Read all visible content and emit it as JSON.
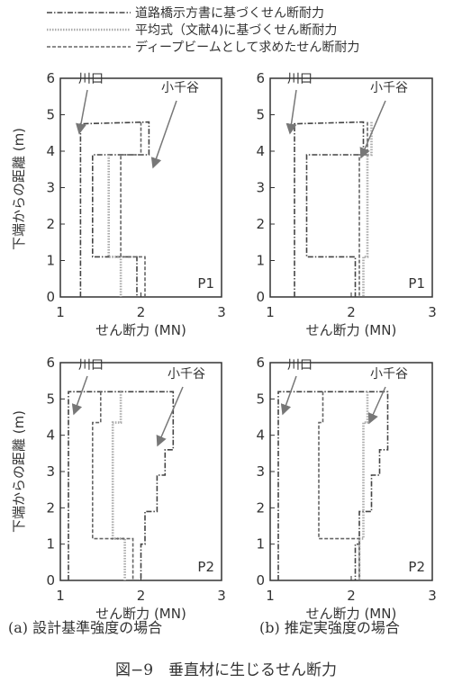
{
  "legend": [
    {
      "label": "道路橋示方書に基づくせん断耐力",
      "style": "dash-dot",
      "color": "#444444"
    },
    {
      "label": "平均式（文献4)に基づくせん断耐力",
      "style": "dotted",
      "color": "#aaaaaa"
    },
    {
      "label": "ディープビームとして求めたせん断耐力",
      "style": "dashed",
      "color": "#666666"
    }
  ],
  "ylabel": "下端からの距離 (m)",
  "xlabel": "せん断力 (MN)",
  "x_ticks": [
    "1",
    "2",
    "3"
  ],
  "y_ticks": [
    "0",
    "1",
    "2",
    "3",
    "4",
    "5",
    "6"
  ],
  "annotations": {
    "kawaguchi": "川口",
    "kochidani": "小千谷"
  },
  "subcaptions": {
    "a": "(a) 設計基準強度の場合",
    "b": "(b) 推定実強度の場合"
  },
  "figure_caption": "図−9　垂直材に生じるせん断力",
  "chart_data": [
    {
      "type": "line",
      "panel_label": "P1",
      "column": "a",
      "xlim": [
        1,
        3
      ],
      "ylim": [
        0,
        6
      ],
      "series": [
        {
          "name": "道路橋示方書に基づくせん断耐力",
          "color": "#444444",
          "dash": "6,2,1.5,2",
          "points": [
            [
              1.25,
              0
            ],
            [
              1.25,
              4.75
            ],
            [
              2.1,
              4.8
            ],
            [
              2.1,
              3.9
            ],
            [
              1.4,
              3.9
            ],
            [
              1.4,
              1.1
            ],
            [
              1.95,
              1.1
            ],
            [
              1.95,
              0
            ]
          ]
        },
        {
          "name": "平均式（文献4)に基づくせん断耐力",
          "color": "#aaaaaa",
          "dash": "1.5,1.5",
          "points": [
            [
              1.6,
              3.9
            ],
            [
              1.6,
              1.1
            ],
            [
              1.75,
              1.1
            ],
            [
              1.75,
              0
            ]
          ]
        },
        {
          "name": "ディープビームとして求めたせん断耐力",
          "color": "#666666",
          "dash": "4,2",
          "points": [
            [
              2.0,
              4.8
            ],
            [
              2.0,
              3.9
            ],
            [
              1.75,
              3.9
            ],
            [
              1.75,
              1.1
            ],
            [
              2.05,
              1.1
            ],
            [
              2.05,
              0
            ]
          ]
        }
      ]
    },
    {
      "type": "line",
      "panel_label": "P1",
      "column": "b",
      "xlim": [
        1,
        3
      ],
      "ylim": [
        0,
        6
      ],
      "series": [
        {
          "name": "道路橋示方書に基づくせん断耐力",
          "color": "#444444",
          "dash": "6,2,1.5,2",
          "points": [
            [
              1.3,
              0
            ],
            [
              1.3,
              4.75
            ],
            [
              2.15,
              4.8
            ],
            [
              2.15,
              3.9
            ],
            [
              1.45,
              3.9
            ],
            [
              1.45,
              1.1
            ],
            [
              2.05,
              1.1
            ],
            [
              2.05,
              0
            ]
          ]
        },
        {
          "name": "平均式（文献4)に基づくせん断耐力",
          "color": "#aaaaaa",
          "dash": "1.5,1.5",
          "points": [
            [
              2.25,
              4.8
            ],
            [
              2.25,
              3.9
            ],
            [
              2.2,
              3.9
            ],
            [
              2.2,
              1.1
            ],
            [
              2.15,
              1.1
            ],
            [
              2.15,
              0
            ]
          ]
        },
        {
          "name": "ディープビームとして求めたせん断耐力",
          "color": "#666666",
          "dash": "4,2",
          "points": [
            [
              2.2,
              4.8
            ],
            [
              2.2,
              3.9
            ],
            [
              2.1,
              3.9
            ],
            [
              2.1,
              1.1
            ],
            [
              2.1,
              0
            ]
          ]
        }
      ]
    },
    {
      "type": "line",
      "panel_label": "P2",
      "column": "a",
      "xlim": [
        1,
        3
      ],
      "ylim": [
        0,
        6
      ],
      "series": [
        {
          "name": "道路橋示方書に基づくせん断耐力",
          "color": "#444444",
          "dash": "6,2,1.5,2",
          "points": [
            [
              1.1,
              0
            ],
            [
              1.1,
              5.2
            ],
            [
              2.4,
              5.2
            ],
            [
              2.4,
              3.6
            ],
            [
              2.3,
              3.6
            ],
            [
              2.3,
              2.9
            ],
            [
              2.2,
              2.9
            ],
            [
              2.2,
              1.9
            ],
            [
              2.05,
              1.9
            ],
            [
              2.05,
              1.0
            ],
            [
              2.0,
              1.0
            ],
            [
              2.0,
              0
            ]
          ]
        },
        {
          "name": "平均式（文献4)に基づくせん断耐力",
          "color": "#aaaaaa",
          "dash": "1.5,1.5",
          "points": [
            [
              1.75,
              5.2
            ],
            [
              1.75,
              4.35
            ],
            [
              1.65,
              4.35
            ],
            [
              1.65,
              1.15
            ],
            [
              1.8,
              1.15
            ],
            [
              1.8,
              0
            ]
          ]
        },
        {
          "name": "ディープビームとして求めたせん断耐力",
          "color": "#666666",
          "dash": "4,2",
          "points": [
            [
              1.5,
              5.2
            ],
            [
              1.5,
              4.35
            ],
            [
              1.4,
              4.35
            ],
            [
              1.4,
              1.15
            ],
            [
              1.9,
              1.15
            ],
            [
              1.9,
              0
            ]
          ]
        }
      ]
    },
    {
      "type": "line",
      "panel_label": "P2",
      "column": "b",
      "xlim": [
        1,
        3
      ],
      "ylim": [
        0,
        6
      ],
      "series": [
        {
          "name": "道路橋示方書に基づくせん断耐力",
          "color": "#444444",
          "dash": "6,2,1.5,2",
          "points": [
            [
              1.1,
              0
            ],
            [
              1.1,
              5.2
            ],
            [
              2.45,
              5.2
            ],
            [
              2.45,
              3.6
            ],
            [
              2.35,
              3.6
            ],
            [
              2.35,
              2.9
            ],
            [
              2.25,
              2.9
            ],
            [
              2.25,
              1.9
            ],
            [
              2.1,
              1.9
            ],
            [
              2.1,
              1.0
            ],
            [
              2.05,
              1.0
            ],
            [
              2.05,
              0
            ]
          ]
        },
        {
          "name": "平均式（文献4)に基づくせん断耐力",
          "color": "#aaaaaa",
          "dash": "1.5,1.5",
          "points": [
            [
              2.2,
              5.2
            ],
            [
              2.2,
              4.35
            ],
            [
              2.15,
              4.35
            ],
            [
              2.15,
              1.15
            ],
            [
              2.1,
              1.15
            ],
            [
              2.1,
              0
            ]
          ]
        },
        {
          "name": "ディープビームとして求めたせん断耐力",
          "color": "#666666",
          "dash": "4,2",
          "points": [
            [
              1.65,
              5.2
            ],
            [
              1.65,
              4.35
            ],
            [
              1.6,
              4.35
            ],
            [
              1.6,
              1.15
            ],
            [
              2.1,
              1.15
            ],
            [
              2.1,
              0
            ]
          ]
        }
      ]
    }
  ]
}
